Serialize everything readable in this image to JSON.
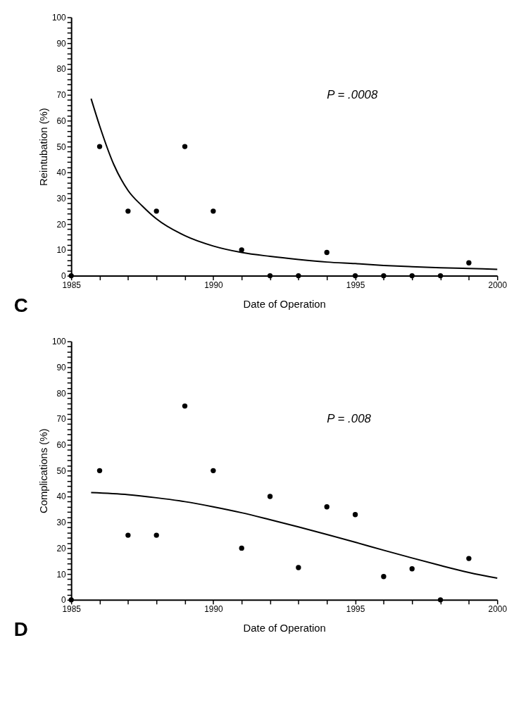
{
  "chart_data": [
    {
      "type": "scatter",
      "xlabel": "Date of Operation",
      "ylabel": "Reintubation (%)",
      "annotations": [
        "P = .0008",
        "C"
      ],
      "xlim": [
        1985,
        2000
      ],
      "ylim": [
        0,
        100
      ],
      "xticks": [
        1985,
        {
          "value": 1986,
          "label": null
        },
        {
          "value": 1987,
          "label": null
        },
        {
          "value": 1988,
          "label": null
        },
        {
          "value": 1989,
          "label": null
        },
        1990,
        {
          "value": 1991,
          "label": null
        },
        {
          "value": 1992,
          "label": null
        },
        {
          "value": 1993,
          "label": null
        },
        {
          "value": 1994,
          "label": null
        },
        1995,
        {
          "value": 1996,
          "label": null
        },
        {
          "value": 1997,
          "label": null
        },
        {
          "value": 1998,
          "label": null
        },
        {
          "value": 1999,
          "label": null
        },
        2000
      ],
      "yticks": [
        0,
        {
          "value": 2,
          "label": null
        },
        {
          "value": 4,
          "label": null
        },
        {
          "value": 6,
          "label": null
        },
        {
          "value": 8,
          "label": null
        },
        10,
        {
          "value": 12,
          "label": null
        },
        {
          "value": 14,
          "label": null
        },
        {
          "value": 16,
          "label": null
        },
        {
          "value": 18,
          "label": null
        },
        20,
        {
          "value": 22,
          "label": null
        },
        {
          "value": 24,
          "label": null
        },
        {
          "value": 26,
          "label": null
        },
        {
          "value": 28,
          "label": null
        },
        30,
        {
          "value": 32,
          "label": null
        },
        {
          "value": 34,
          "label": null
        },
        {
          "value": 36,
          "label": null
        },
        {
          "value": 38,
          "label": null
        },
        40,
        {
          "value": 42,
          "label": null
        },
        {
          "value": 44,
          "label": null
        },
        {
          "value": 46,
          "label": null
        },
        {
          "value": 48,
          "label": null
        },
        50,
        {
          "value": 52,
          "label": null
        },
        {
          "value": 54,
          "label": null
        },
        {
          "value": 56,
          "label": null
        },
        {
          "value": 58,
          "label": null
        },
        60,
        {
          "value": 62,
          "label": null
        },
        {
          "value": 64,
          "label": null
        },
        {
          "value": 66,
          "label": null
        },
        {
          "value": 68,
          "label": null
        },
        70,
        {
          "value": 72,
          "label": null
        },
        {
          "value": 74,
          "label": null
        },
        {
          "value": 76,
          "label": null
        },
        {
          "value": 78,
          "label": null
        },
        80,
        {
          "value": 82,
          "label": null
        },
        {
          "value": 84,
          "label": null
        },
        {
          "value": 86,
          "label": null
        },
        {
          "value": 88,
          "label": null
        },
        90,
        {
          "value": 92,
          "label": null
        },
        {
          "value": 94,
          "label": null
        },
        {
          "value": 96,
          "label": null
        },
        {
          "value": 98,
          "label": null
        },
        100
      ],
      "series": [
        {
          "color": "#000000",
          "marker": "circle",
          "x": [
            1985,
            1986,
            1987,
            1988,
            1989,
            1990,
            1991,
            1992,
            1993,
            1994,
            1995,
            1996,
            1997,
            1998,
            1999
          ],
          "values": [
            0,
            50,
            25,
            25,
            50,
            25,
            10,
            0,
            0,
            9,
            0,
            0,
            0,
            0,
            5
          ]
        },
        {
          "type": "line",
          "color": "#000000",
          "x": [
            1985.7,
            1986,
            1986.5,
            1987,
            1987.5,
            1988,
            1989,
            1990,
            1991,
            1992,
            1993,
            1994,
            1995,
            1996,
            1997,
            1998,
            1999,
            2000
          ],
          "values": [
            68.5,
            58,
            43,
            33,
            27,
            22,
            15.5,
            11.5,
            9,
            7.5,
            6.3,
            5.3,
            4.7,
            4,
            3.5,
            3.1,
            2.8,
            2.5
          ]
        }
      ]
    },
    {
      "type": "scatter",
      "xlabel": "Date of Operation",
      "ylabel": "Complications (%)",
      "annotations": [
        "P = .008",
        "D"
      ],
      "xlim": [
        1985,
        2000
      ],
      "ylim": [
        0,
        100
      ],
      "xticks": [
        1985,
        {
          "value": 1986,
          "label": null
        },
        {
          "value": 1987,
          "label": null
        },
        {
          "value": 1988,
          "label": null
        },
        {
          "value": 1989,
          "label": null
        },
        1990,
        {
          "value": 1991,
          "label": null
        },
        {
          "value": 1992,
          "label": null
        },
        {
          "value": 1993,
          "label": null
        },
        {
          "value": 1994,
          "label": null
        },
        1995,
        {
          "value": 1996,
          "label": null
        },
        {
          "value": 1997,
          "label": null
        },
        {
          "value": 1998,
          "label": null
        },
        {
          "value": 1999,
          "label": null
        },
        2000
      ],
      "yticks": [
        0,
        {
          "value": 2,
          "label": null
        },
        {
          "value": 4,
          "label": null
        },
        {
          "value": 6,
          "label": null
        },
        {
          "value": 8,
          "label": null
        },
        10,
        {
          "value": 12,
          "label": null
        },
        {
          "value": 14,
          "label": null
        },
        {
          "value": 16,
          "label": null
        },
        {
          "value": 18,
          "label": null
        },
        20,
        {
          "value": 22,
          "label": null
        },
        {
          "value": 24,
          "label": null
        },
        {
          "value": 26,
          "label": null
        },
        {
          "value": 28,
          "label": null
        },
        30,
        {
          "value": 32,
          "label": null
        },
        {
          "value": 34,
          "label": null
        },
        {
          "value": 36,
          "label": null
        },
        {
          "value": 38,
          "label": null
        },
        40,
        {
          "value": 42,
          "label": null
        },
        {
          "value": 44,
          "label": null
        },
        {
          "value": 46,
          "label": null
        },
        {
          "value": 48,
          "label": null
        },
        50,
        {
          "value": 52,
          "label": null
        },
        {
          "value": 54,
          "label": null
        },
        {
          "value": 56,
          "label": null
        },
        {
          "value": 58,
          "label": null
        },
        60,
        {
          "value": 62,
          "label": null
        },
        {
          "value": 64,
          "label": null
        },
        {
          "value": 66,
          "label": null
        },
        {
          "value": 68,
          "label": null
        },
        70,
        {
          "value": 72,
          "label": null
        },
        {
          "value": 74,
          "label": null
        },
        {
          "value": 76,
          "label": null
        },
        {
          "value": 78,
          "label": null
        },
        80,
        {
          "value": 82,
          "label": null
        },
        {
          "value": 84,
          "label": null
        },
        {
          "value": 86,
          "label": null
        },
        {
          "value": 88,
          "label": null
        },
        90,
        {
          "value": 92,
          "label": null
        },
        {
          "value": 94,
          "label": null
        },
        {
          "value": 96,
          "label": null
        },
        {
          "value": 98,
          "label": null
        },
        100
      ],
      "series": [
        {
          "color": "#000000",
          "marker": "circle",
          "x": [
            1985,
            1986,
            1987,
            1988,
            1989,
            1990,
            1991,
            1992,
            1993,
            1994,
            1995,
            1996,
            1997,
            1998,
            1999
          ],
          "values": [
            0,
            50,
            25,
            25,
            75,
            50,
            20,
            40,
            12.5,
            36,
            33,
            9,
            12,
            0,
            16
          ]
        },
        {
          "type": "line",
          "color": "#000000",
          "x": [
            1985.7,
            1987,
            1988,
            1989,
            1990,
            1991,
            1992,
            1993,
            1994,
            1995,
            1996,
            1997,
            1998,
            1999,
            2000
          ],
          "values": [
            41.5,
            40.7,
            39.5,
            38,
            36,
            33.7,
            31,
            28.2,
            25.3,
            22.3,
            19.2,
            16.2,
            13.3,
            10.6,
            8.4
          ]
        }
      ]
    }
  ]
}
